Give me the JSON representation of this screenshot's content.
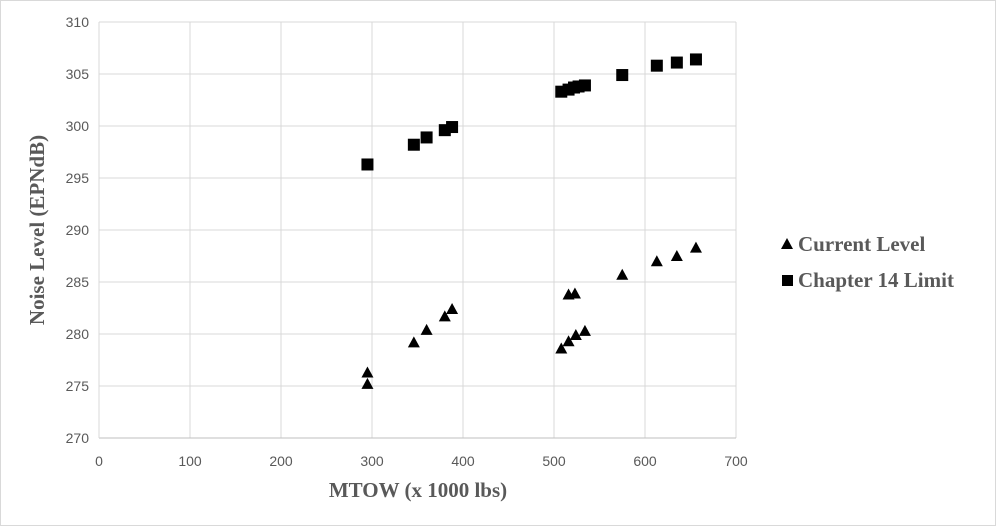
{
  "chart_data": {
    "type": "scatter",
    "xlabel": "MTOW (x 1000 lbs)",
    "ylabel": "Noise Level (EPNdB)",
    "xlim": [
      0,
      700
    ],
    "ylim": [
      270,
      310
    ],
    "x_ticks": [
      "0",
      "100",
      "200",
      "300",
      "400",
      "500",
      "600",
      "700"
    ],
    "y_ticks": [
      "270",
      "275",
      "280",
      "285",
      "290",
      "295",
      "300",
      "305",
      "310"
    ],
    "grid": "vertical and horizontal",
    "legend_position": "right",
    "series": [
      {
        "name": "Current Level",
        "marker": "triangle",
        "color": "#000000",
        "points": [
          [
            295,
            276.3
          ],
          [
            295,
            275.2
          ],
          [
            346,
            279.2
          ],
          [
            360,
            280.4
          ],
          [
            380,
            281.7
          ],
          [
            388,
            282.4
          ],
          [
            508,
            278.6
          ],
          [
            516,
            279.3
          ],
          [
            524,
            279.9
          ],
          [
            534,
            280.3
          ],
          [
            516,
            283.8
          ],
          [
            523,
            283.9
          ],
          [
            575,
            285.7
          ],
          [
            613,
            287.0
          ],
          [
            635,
            287.5
          ],
          [
            656,
            288.3
          ]
        ]
      },
      {
        "name": "Chapter 14 Limit",
        "marker": "square",
        "color": "#000000",
        "points": [
          [
            295,
            296.3
          ],
          [
            346,
            298.2
          ],
          [
            360,
            298.9
          ],
          [
            380,
            299.6
          ],
          [
            388,
            299.9
          ],
          [
            508,
            303.3
          ],
          [
            516,
            303.5
          ],
          [
            522,
            303.7
          ],
          [
            527,
            303.8
          ],
          [
            534,
            303.9
          ],
          [
            575,
            304.9
          ],
          [
            613,
            305.8
          ],
          [
            635,
            306.1
          ],
          [
            656,
            306.4
          ]
        ]
      }
    ]
  }
}
